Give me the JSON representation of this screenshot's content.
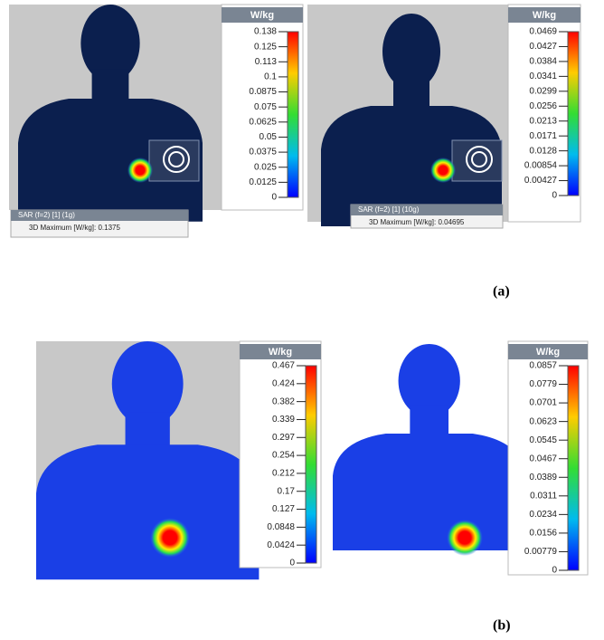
{
  "panels": [
    {
      "unit": "W/kg",
      "ticks": [
        "0.138",
        "0.125",
        "0.113",
        "0.1",
        "0.0875",
        "0.075",
        "0.0625",
        "0.05",
        "0.0375",
        "0.025",
        "0.0125",
        "0"
      ],
      "footer_title": "SAR (f=2) [1] (1g)",
      "footer_text": "3D Maximum [W/kg]:  0.1375"
    },
    {
      "unit": "W/kg",
      "ticks": [
        "0.0469",
        "0.0427",
        "0.0384",
        "0.0341",
        "0.0299",
        "0.0256",
        "0.0213",
        "0.0171",
        "0.0128",
        "0.00854",
        "0.00427",
        "0"
      ],
      "footer_title": "SAR (f=2) [1] (10g)",
      "footer_text": "3D Maximum [W/kg]:  0.04695"
    },
    {
      "unit": "W/kg",
      "ticks": [
        "0.467",
        "0.424",
        "0.382",
        "0.339",
        "0.297",
        "0.254",
        "0.212",
        "0.17",
        "0.127",
        "0.0848",
        "0.0424",
        "0"
      ]
    },
    {
      "unit": "W/kg",
      "ticks": [
        "0.0857",
        "0.0779",
        "0.0701",
        "0.0623",
        "0.0545",
        "0.0467",
        "0.0389",
        "0.0311",
        "0.0234",
        "0.0156",
        "0.00779",
        "0"
      ]
    }
  ],
  "labels": [
    "(a)",
    "(b)"
  ]
}
